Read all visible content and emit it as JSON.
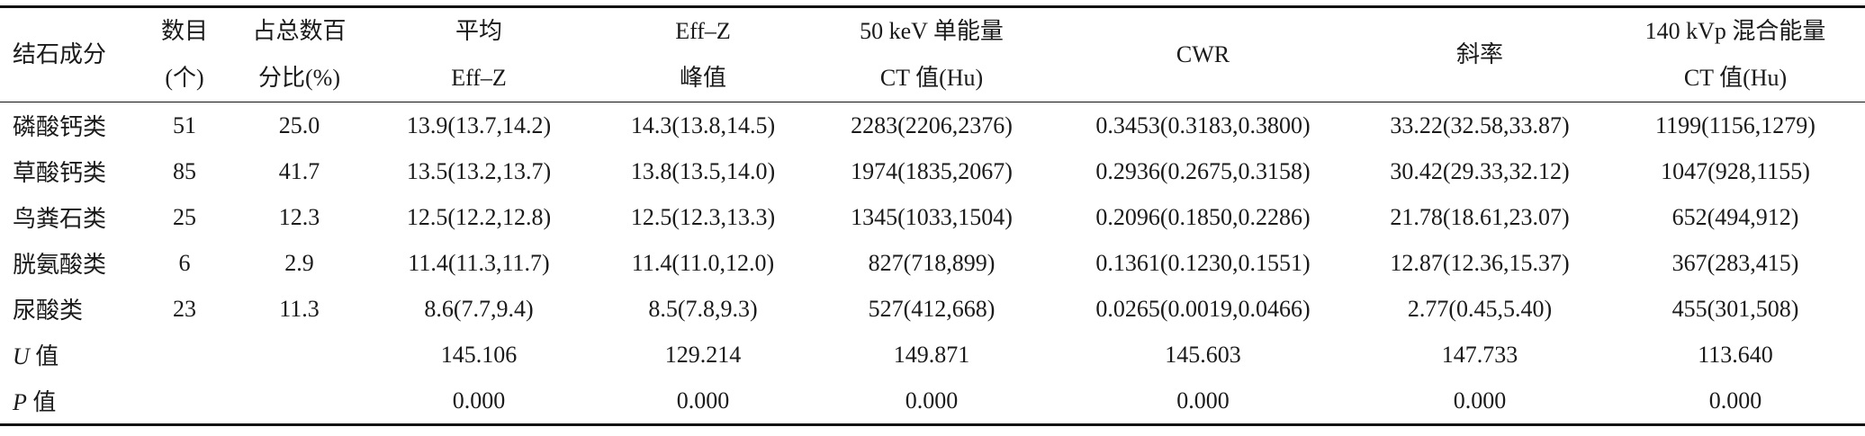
{
  "table": {
    "header": [
      [
        "结石成分"
      ],
      [
        "数目",
        "(个)"
      ],
      [
        "占总数百",
        "分比(%)"
      ],
      [
        "平均",
        "Eff–Z"
      ],
      [
        "Eff–Z",
        "峰值"
      ],
      [
        "50 keV 单能量",
        "CT 值(Hu)"
      ],
      [
        "CWR"
      ],
      [
        "斜率"
      ],
      [
        "140 kVp 混合能量",
        "CT 值(Hu)"
      ]
    ],
    "rows": [
      [
        "磷酸钙类",
        "51",
        "25.0",
        "13.9(13.7,14.2)",
        "14.3(13.8,14.5)",
        "2283(2206,2376)",
        "0.3453(0.3183,0.3800)",
        "33.22(32.58,33.87)",
        "1199(1156,1279)"
      ],
      [
        "草酸钙类",
        "85",
        "41.7",
        "13.5(13.2,13.7)",
        "13.8(13.5,14.0)",
        "1974(1835,2067)",
        "0.2936(0.2675,0.3158)",
        "30.42(29.33,32.12)",
        "1047(928,1155)"
      ],
      [
        "鸟粪石类",
        "25",
        "12.3",
        "12.5(12.2,12.8)",
        "12.5(12.3,13.3)",
        "1345(1033,1504)",
        "0.2096(0.1850,0.2286)",
        "21.78(18.61,23.07)",
        "652(494,912)"
      ],
      [
        "胱氨酸类",
        "6",
        "2.9",
        "11.4(11.3,11.7)",
        "11.4(11.0,12.0)",
        "827(718,899)",
        "0.1361(0.1230,0.1551)",
        "12.87(12.36,15.37)",
        "367(283,415)"
      ],
      [
        "尿酸类",
        "23",
        "11.3",
        "8.6(7.7,9.4)",
        "8.5(7.8,9.3)",
        "527(412,668)",
        "0.0265(0.0019,0.0466)",
        "2.77(0.45,5.40)",
        "455(301,508)"
      ]
    ],
    "stats": [
      {
        "symbol": "U",
        "suffix": "值",
        "values": [
          "145.106",
          "129.214",
          "149.871",
          "145.603",
          "147.733",
          "113.640"
        ]
      },
      {
        "symbol": "P",
        "suffix": "值",
        "values": [
          "0.000",
          "0.000",
          "0.000",
          "0.000",
          "0.000",
          "0.000"
        ]
      }
    ]
  }
}
